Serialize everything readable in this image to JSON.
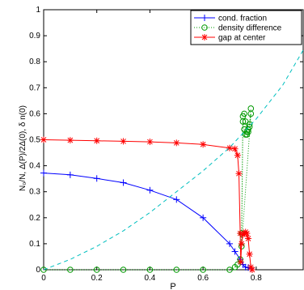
{
  "chart_data": {
    "type": "line",
    "xlabel": "P",
    "ylabel": "N₀/N, Δ(P)/2Δ(0), δ n(0)",
    "xlim": [
      0,
      0.98
    ],
    "ylim": [
      0,
      1
    ],
    "xticks": [
      "0",
      "0.2",
      "0.4",
      "0.6",
      "0.8"
    ],
    "yticks": [
      "0",
      "0.1",
      "0.2",
      "0.3",
      "0.4",
      "0.5",
      "0.6",
      "0.7",
      "0.8",
      "0.9",
      "1"
    ],
    "grid": false,
    "legend_position": "top-right",
    "series": [
      {
        "name": "cond. fraction",
        "color": "#0000ff",
        "marker": "plus",
        "line": "solid",
        "x": [
          0,
          0.1,
          0.2,
          0.3,
          0.4,
          0.5,
          0.6,
          0.7,
          0.72,
          0.74,
          0.75,
          0.76,
          0.77,
          0.78
        ],
        "y": [
          0.372,
          0.365,
          0.351,
          0.335,
          0.306,
          0.27,
          0.2,
          0.1,
          0.07,
          0.04,
          0.02,
          0.01,
          0.008,
          0.005
        ]
      },
      {
        "name": "density difference",
        "color": "#009900",
        "marker": "circle",
        "line": "dotted",
        "x": [
          0,
          0.1,
          0.2,
          0.3,
          0.4,
          0.5,
          0.6,
          0.7,
          0.72,
          0.73,
          0.74,
          0.745,
          0.75,
          0.755,
          0.76,
          0.765,
          0.77,
          0.775,
          0.78,
          0.745,
          0.75,
          0.755,
          0.76,
          0.765,
          0.77,
          0.775,
          0.78
        ],
        "y": [
          0,
          0,
          0,
          0,
          0,
          0,
          0,
          0,
          0.01,
          0.02,
          0.04,
          0.14,
          0.59,
          0.6,
          0.57,
          0.53,
          0.53,
          0.55,
          0.6,
          0.09,
          0.57,
          0.54,
          0.52,
          0.52,
          0.54,
          0.56,
          0.62
        ]
      },
      {
        "name": "gap at center",
        "color": "#ff0000",
        "marker": "asterisk",
        "line": "solid",
        "x": [
          0,
          0.1,
          0.2,
          0.3,
          0.4,
          0.5,
          0.6,
          0.7,
          0.72,
          0.73,
          0.735,
          0.74,
          0.742,
          0.745,
          0.75,
          0.755,
          0.76,
          0.765,
          0.77,
          0.775,
          0.78,
          0.785
        ],
        "y": [
          0.5,
          0.498,
          0.496,
          0.494,
          0.492,
          0.488,
          0.482,
          0.468,
          0.465,
          0.44,
          0.37,
          0.14,
          0.03,
          0.1,
          0.135,
          0.14,
          0.145,
          0.14,
          0.12,
          0.06,
          0.01,
          0.0
        ]
      },
      {
        "name": "",
        "color": "#00bfbf",
        "marker": "none",
        "line": "dashed",
        "x": [
          0,
          0.1,
          0.2,
          0.3,
          0.4,
          0.5,
          0.6,
          0.7,
          0.8,
          0.9,
          0.98
        ],
        "y": [
          0,
          0.04,
          0.09,
          0.15,
          0.22,
          0.3,
          0.38,
          0.47,
          0.58,
          0.71,
          0.85
        ]
      }
    ]
  }
}
